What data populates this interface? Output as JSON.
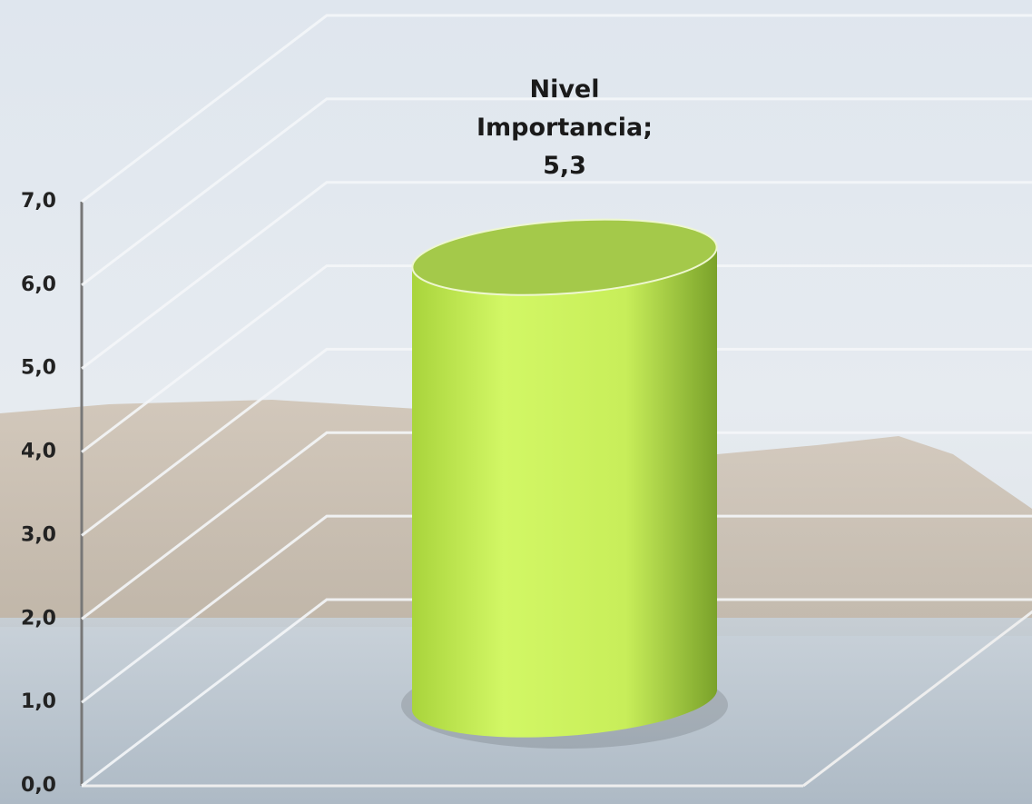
{
  "chart_data": {
    "type": "bar3d",
    "categories": [
      "Nivel Importancia"
    ],
    "values": [
      5.3
    ],
    "value_labels": [
      "Nivel Importancia; 5,3"
    ],
    "color": "#ccf55f",
    "ylim": [
      0,
      7
    ],
    "yticks": [
      {
        "value": 0,
        "label": "0,0"
      },
      {
        "value": 1,
        "label": "1,0"
      },
      {
        "value": 2,
        "label": "2,0"
      },
      {
        "value": 3,
        "label": "3,0"
      },
      {
        "value": 4,
        "label": "4,0"
      },
      {
        "value": 5,
        "label": "5,0"
      },
      {
        "value": 6,
        "label": "6,0"
      },
      {
        "value": 7,
        "label": "7,0"
      }
    ],
    "grid": true
  }
}
